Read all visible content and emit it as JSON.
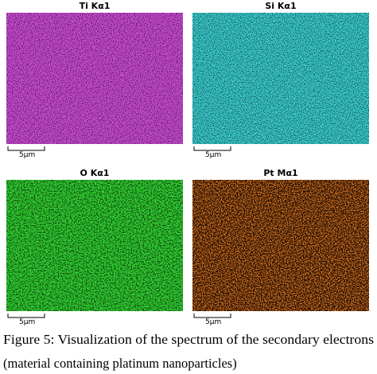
{
  "panels": [
    {
      "title": "Ti Kα1",
      "scale_label": "5μm"
    },
    {
      "title": "Si Kα1",
      "scale_label": "5μm"
    },
    {
      "title": "O Kα1",
      "scale_label": "5μm"
    },
    {
      "title": "Pt Mα1",
      "scale_label": "5μm"
    }
  ],
  "caption": {
    "line1": "Figure 5: Visualization of the spectrum of the secondary electrons",
    "line2": "(material containing platinum nanoparticles)"
  }
}
